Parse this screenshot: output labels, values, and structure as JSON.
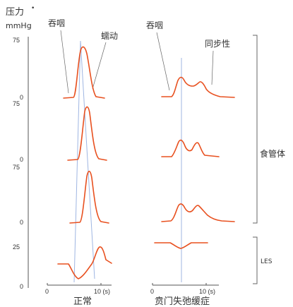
{
  "labels": {
    "pressure": "压力",
    "pressure_dot": "•",
    "unit": "mmHg",
    "swallow_left": "吞咽",
    "peristalsis": "蠕动",
    "swallow_right": "吞咽",
    "synchronous": "同步性",
    "esophageal_body": "食管体",
    "les": "LES",
    "normal": "正常",
    "achalasia": "贲门失弛缓症"
  },
  "y_ticks": {
    "row1": [
      "75",
      "0"
    ],
    "row2": [
      "75",
      "0"
    ],
    "row3": [
      "75",
      "0"
    ],
    "row4": [
      "25",
      "0"
    ]
  },
  "x_ticks": {
    "left": [
      "0",
      "10 (s)"
    ],
    "right": [
      "0",
      "10 (s)"
    ]
  },
  "colors": {
    "trace": "#e8501f",
    "swallow_line": "#9fb6e2",
    "text": "#333333"
  }
}
